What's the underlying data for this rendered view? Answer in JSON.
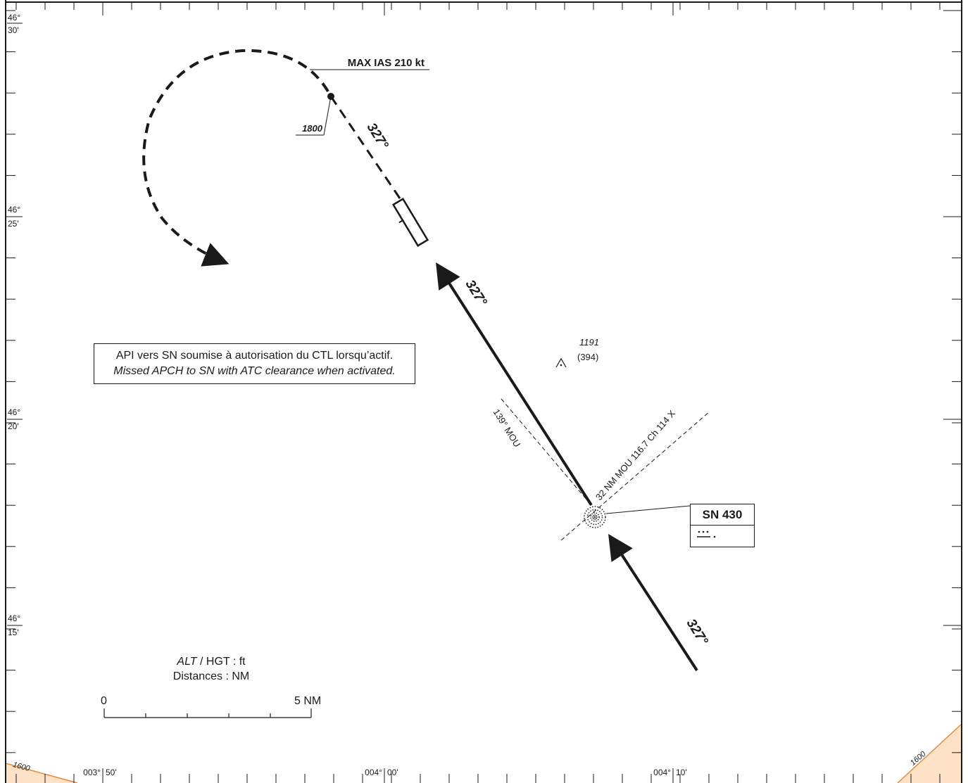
{
  "colors": {
    "ink": "#1a1a1a",
    "terrain_fill": "#fde2c8",
    "terrain_line": "#e8893a"
  },
  "lat_labels": [
    {
      "deg": "46°",
      "min": "30'"
    },
    {
      "deg": "46°",
      "min": "25'"
    },
    {
      "deg": "46°",
      "min": "20'"
    },
    {
      "deg": "46°",
      "min": "15'"
    }
  ],
  "lon_labels": [
    {
      "deg": "003°",
      "min": "50'"
    },
    {
      "deg": "004°",
      "min": "00'"
    },
    {
      "deg": "004°",
      "min": "10'"
    }
  ],
  "track_labels": {
    "inbound_lower": "327°",
    "inbound_upper": "327°",
    "missed": "327°"
  },
  "speed_restriction": "MAX IAS 210 kt",
  "missed_altitude": "1800",
  "radial_label": "139° MOU",
  "dme_label": "32 NM MOU 116.7 Ch 114 X",
  "obstacle": {
    "alt": "1191",
    "hgt": "(394)",
    "icon": "obstacle-icon"
  },
  "navaid": {
    "name": "SN 430",
    "icon": "ndb-icon",
    "morse": "··· -·"
  },
  "note": {
    "fr": "API vers SN soumise à autorisation du CTL lorsqu’actif.",
    "en": "Missed APCH to SN with ATC clearance when activated."
  },
  "legend": {
    "alt_italic": "ALT",
    "alt_rest": " / HGT : ft",
    "distances": "Distances : NM"
  },
  "scale": {
    "start": "0",
    "end": "5 NM"
  },
  "contours": {
    "left": "1600",
    "right": "1600"
  }
}
